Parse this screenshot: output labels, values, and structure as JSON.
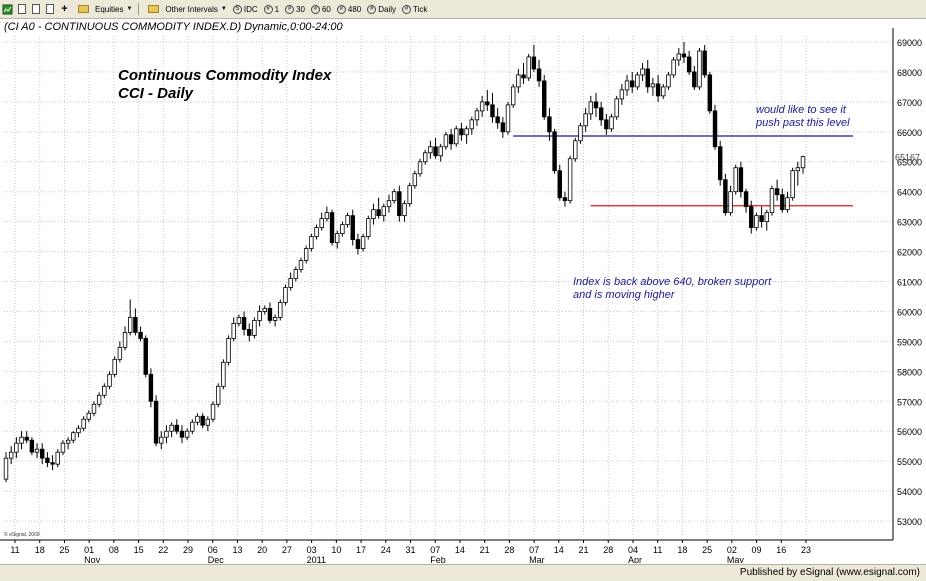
{
  "toolbar": {
    "equities_label": "Equities",
    "intervals_label": "Other Intervals",
    "interval_buttons": [
      "IDC",
      "1",
      "30",
      "60",
      "480",
      "Daily",
      "Tick"
    ]
  },
  "status_bar": {
    "text": "Published by eSignal (www.esignal.com)"
  },
  "chart_data": {
    "type": "candlestick",
    "header": "(CI A0 - CONTINUOUS COMMODITY INDEX.D) Dynamic,0:00-24:00",
    "title": "Continuous Commodity Index",
    "subtitle": "CCI - Daily",
    "copyright": "© eSignal, 2009",
    "ylim": [
      5250,
      6920
    ],
    "y_ticks": [
      {
        "value": 5300,
        "label": "53000"
      },
      {
        "value": 5400,
        "label": "54000"
      },
      {
        "value": 5500,
        "label": "55000"
      },
      {
        "value": 5600,
        "label": "56000"
      },
      {
        "value": 5700,
        "label": "57000"
      },
      {
        "value": 5800,
        "label": "58000"
      },
      {
        "value": 5900,
        "label": "59000"
      },
      {
        "value": 6000,
        "label": "60000"
      },
      {
        "value": 6100,
        "label": "61000"
      },
      {
        "value": 6200,
        "label": "62000"
      },
      {
        "value": 6300,
        "label": "63000"
      },
      {
        "value": 6400,
        "label": "64000"
      },
      {
        "value": 6500,
        "label": "65000"
      },
      {
        "value": 6600,
        "label": "66000"
      },
      {
        "value": 6700,
        "label": "67000"
      },
      {
        "value": 6800,
        "label": "68000"
      },
      {
        "value": 6900,
        "label": "69000"
      }
    ],
    "last_price": {
      "value": 6516.7,
      "label": "65167"
    },
    "x_day_labels": [
      "11",
      "18",
      "25",
      "01",
      "08",
      "15",
      "22",
      "29",
      "06",
      "13",
      "20",
      "27",
      "03",
      "10",
      "17",
      "24",
      "31",
      "07",
      "14",
      "21",
      "28",
      "07",
      "14",
      "21",
      "28",
      "04",
      "11",
      "18",
      "25",
      "02",
      "09",
      "16",
      "23"
    ],
    "x_month_labels": [
      {
        "label": "Nov",
        "day_index": 3
      },
      {
        "label": "Dec",
        "day_index": 8
      },
      {
        "label": "2011",
        "day_index": 12
      },
      {
        "label": "Feb",
        "day_index": 17
      },
      {
        "label": "Mar",
        "day_index": 21
      },
      {
        "label": "Apr",
        "day_index": 25
      },
      {
        "label": "May",
        "day_index": 29
      }
    ],
    "levels": [
      {
        "name": "resistance",
        "value": 6586,
        "color": "#1a1a8c",
        "start_bar": 98
      },
      {
        "name": "support",
        "value": 6353,
        "color": "#e01818",
        "start_bar": 113
      }
    ],
    "annotations": [
      {
        "lines": [
          "would like to see it",
          "push past this level"
        ],
        "color": "#1a1a8c"
      },
      {
        "lines": [
          "Index is back above 640, broken support",
          "and is moving higher"
        ],
        "color": "#1a1a8c"
      }
    ],
    "ohlc": [
      [
        5440,
        5530,
        5430,
        5510
      ],
      [
        5510,
        5550,
        5490,
        5530
      ],
      [
        5530,
        5580,
        5510,
        5560
      ],
      [
        5560,
        5600,
        5540,
        5580
      ],
      [
        5580,
        5600,
        5560,
        5570
      ],
      [
        5570,
        5580,
        5520,
        5530
      ],
      [
        5530,
        5560,
        5510,
        5540
      ],
      [
        5540,
        5560,
        5490,
        5510
      ],
      [
        5510,
        5530,
        5480,
        5495
      ],
      [
        5495,
        5520,
        5470,
        5490
      ],
      [
        5490,
        5540,
        5480,
        5530
      ],
      [
        5530,
        5570,
        5520,
        5560
      ],
      [
        5560,
        5580,
        5540,
        5570
      ],
      [
        5570,
        5600,
        5560,
        5595
      ],
      [
        5595,
        5620,
        5580,
        5610
      ],
      [
        5610,
        5650,
        5600,
        5640
      ],
      [
        5640,
        5670,
        5630,
        5660
      ],
      [
        5660,
        5700,
        5650,
        5690
      ],
      [
        5690,
        5730,
        5680,
        5720
      ],
      [
        5720,
        5760,
        5710,
        5750
      ],
      [
        5750,
        5800,
        5740,
        5790
      ],
      [
        5790,
        5850,
        5780,
        5840
      ],
      [
        5840,
        5900,
        5830,
        5880
      ],
      [
        5880,
        5950,
        5870,
        5930
      ],
      [
        5930,
        6040,
        5920,
        5980
      ],
      [
        5980,
        6010,
        5920,
        5930
      ],
      [
        5930,
        5950,
        5900,
        5910
      ],
      [
        5910,
        5920,
        5780,
        5790
      ],
      [
        5790,
        5810,
        5680,
        5700
      ],
      [
        5700,
        5720,
        5550,
        5560
      ],
      [
        5560,
        5600,
        5540,
        5580
      ],
      [
        5580,
        5620,
        5560,
        5600
      ],
      [
        5600,
        5630,
        5580,
        5620
      ],
      [
        5620,
        5640,
        5590,
        5600
      ],
      [
        5600,
        5620,
        5560,
        5580
      ],
      [
        5580,
        5610,
        5570,
        5600
      ],
      [
        5600,
        5640,
        5590,
        5630
      ],
      [
        5630,
        5660,
        5620,
        5650
      ],
      [
        5650,
        5660,
        5610,
        5620
      ],
      [
        5620,
        5650,
        5600,
        5640
      ],
      [
        5640,
        5700,
        5630,
        5690
      ],
      [
        5690,
        5760,
        5680,
        5750
      ],
      [
        5750,
        5840,
        5740,
        5830
      ],
      [
        5830,
        5920,
        5820,
        5910
      ],
      [
        5910,
        5980,
        5900,
        5960
      ],
      [
        5960,
        5990,
        5950,
        5980
      ],
      [
        5980,
        6000,
        5920,
        5940
      ],
      [
        5940,
        5960,
        5900,
        5920
      ],
      [
        5920,
        5980,
        5910,
        5970
      ],
      [
        5970,
        6020,
        5950,
        6000
      ],
      [
        6000,
        6020,
        5990,
        6010
      ],
      [
        6010,
        6030,
        5960,
        5970
      ],
      [
        5970,
        5990,
        5950,
        5980
      ],
      [
        5980,
        6040,
        5970,
        6030
      ],
      [
        6030,
        6090,
        6020,
        6080
      ],
      [
        6080,
        6130,
        6070,
        6110
      ],
      [
        6110,
        6150,
        6100,
        6140
      ],
      [
        6140,
        6180,
        6130,
        6170
      ],
      [
        6170,
        6220,
        6160,
        6210
      ],
      [
        6210,
        6260,
        6200,
        6250
      ],
      [
        6250,
        6290,
        6240,
        6280
      ],
      [
        6280,
        6330,
        6270,
        6310
      ],
      [
        6310,
        6350,
        6300,
        6330
      ],
      [
        6330,
        6340,
        6220,
        6230
      ],
      [
        6230,
        6270,
        6210,
        6260
      ],
      [
        6260,
        6300,
        6250,
        6290
      ],
      [
        6290,
        6330,
        6280,
        6320
      ],
      [
        6320,
        6340,
        6220,
        6240
      ],
      [
        6240,
        6260,
        6190,
        6210
      ],
      [
        6210,
        6260,
        6200,
        6250
      ],
      [
        6250,
        6320,
        6240,
        6310
      ],
      [
        6310,
        6360,
        6290,
        6340
      ],
      [
        6340,
        6380,
        6310,
        6320
      ],
      [
        6320,
        6360,
        6300,
        6350
      ],
      [
        6350,
        6390,
        6330,
        6370
      ],
      [
        6370,
        6410,
        6360,
        6400
      ],
      [
        6400,
        6420,
        6300,
        6320
      ],
      [
        6320,
        6370,
        6300,
        6360
      ],
      [
        6360,
        6430,
        6350,
        6420
      ],
      [
        6420,
        6470,
        6410,
        6460
      ],
      [
        6460,
        6510,
        6450,
        6500
      ],
      [
        6500,
        6540,
        6490,
        6530
      ],
      [
        6530,
        6570,
        6510,
        6550
      ],
      [
        6550,
        6580,
        6510,
        6520
      ],
      [
        6520,
        6560,
        6500,
        6550
      ],
      [
        6550,
        6600,
        6540,
        6590
      ],
      [
        6590,
        6610,
        6540,
        6560
      ],
      [
        6560,
        6620,
        6550,
        6610
      ],
      [
        6610,
        6630,
        6570,
        6590
      ],
      [
        6590,
        6620,
        6560,
        6610
      ],
      [
        6610,
        6650,
        6590,
        6640
      ],
      [
        6640,
        6680,
        6620,
        6670
      ],
      [
        6670,
        6720,
        6650,
        6700
      ],
      [
        6700,
        6740,
        6670,
        6690
      ],
      [
        6690,
        6730,
        6630,
        6650
      ],
      [
        6650,
        6680,
        6610,
        6630
      ],
      [
        6630,
        6650,
        6580,
        6600
      ],
      [
        6600,
        6700,
        6590,
        6690
      ],
      [
        6690,
        6760,
        6680,
        6750
      ],
      [
        6750,
        6810,
        6730,
        6790
      ],
      [
        6790,
        6830,
        6760,
        6780
      ],
      [
        6780,
        6860,
        6770,
        6850
      ],
      [
        6850,
        6890,
        6800,
        6810
      ],
      [
        6810,
        6840,
        6750,
        6770
      ],
      [
        6770,
        6790,
        6640,
        6650
      ],
      [
        6650,
        6680,
        6570,
        6600
      ],
      [
        6600,
        6610,
        6460,
        6470
      ],
      [
        6470,
        6490,
        6370,
        6380
      ],
      [
        6380,
        6400,
        6350,
        6370
      ],
      [
        6370,
        6520,
        6360,
        6510
      ],
      [
        6510,
        6580,
        6500,
        6570
      ],
      [
        6570,
        6630,
        6560,
        6620
      ],
      [
        6620,
        6680,
        6600,
        6660
      ],
      [
        6660,
        6720,
        6640,
        6700
      ],
      [
        6700,
        6730,
        6650,
        6680
      ],
      [
        6680,
        6700,
        6620,
        6640
      ],
      [
        6640,
        6660,
        6590,
        6610
      ],
      [
        6610,
        6660,
        6600,
        6650
      ],
      [
        6650,
        6720,
        6640,
        6710
      ],
      [
        6710,
        6760,
        6690,
        6740
      ],
      [
        6740,
        6790,
        6720,
        6770
      ],
      [
        6770,
        6800,
        6730,
        6750
      ],
      [
        6750,
        6800,
        6740,
        6790
      ],
      [
        6790,
        6830,
        6770,
        6810
      ],
      [
        6810,
        6840,
        6730,
        6750
      ],
      [
        6750,
        6780,
        6720,
        6760
      ],
      [
        6760,
        6790,
        6700,
        6720
      ],
      [
        6720,
        6760,
        6710,
        6750
      ],
      [
        6750,
        6800,
        6740,
        6790
      ],
      [
        6790,
        6850,
        6780,
        6840
      ],
      [
        6840,
        6880,
        6820,
        6860
      ],
      [
        6860,
        6900,
        6830,
        6850
      ],
      [
        6850,
        6870,
        6790,
        6800
      ],
      [
        6800,
        6820,
        6740,
        6750
      ],
      [
        6750,
        6880,
        6740,
        6870
      ],
      [
        6870,
        6890,
        6780,
        6790
      ],
      [
        6790,
        6800,
        6660,
        6670
      ],
      [
        6670,
        6690,
        6540,
        6550
      ],
      [
        6550,
        6570,
        6420,
        6440
      ],
      [
        6440,
        6460,
        6320,
        6330
      ],
      [
        6330,
        6420,
        6320,
        6400
      ],
      [
        6400,
        6490,
        6390,
        6480
      ],
      [
        6480,
        6500,
        6380,
        6400
      ],
      [
        6400,
        6410,
        6330,
        6350
      ],
      [
        6350,
        6370,
        6260,
        6280
      ],
      [
        6280,
        6330,
        6270,
        6320
      ],
      [
        6320,
        6350,
        6280,
        6300
      ],
      [
        6300,
        6340,
        6270,
        6330
      ],
      [
        6330,
        6420,
        6320,
        6410
      ],
      [
        6410,
        6440,
        6370,
        6390
      ],
      [
        6390,
        6410,
        6330,
        6340
      ],
      [
        6340,
        6400,
        6330,
        6380
      ],
      [
        6380,
        6480,
        6370,
        6470
      ],
      [
        6470,
        6500,
        6420,
        6480
      ],
      [
        6480,
        6520,
        6460,
        6517
      ]
    ]
  }
}
